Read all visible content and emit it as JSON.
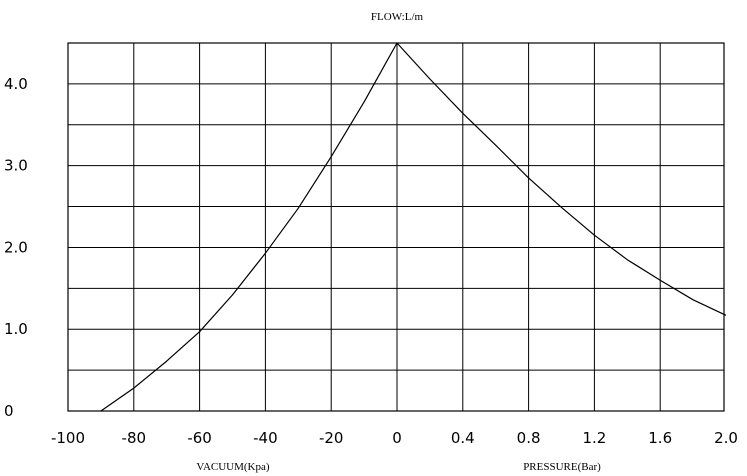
{
  "chart_data": {
    "type": "line",
    "title": "FLOW:L/m",
    "xlabel_left": "VACUUM(Kpa)",
    "xlabel_right": "PRESSURE(Bar)",
    "ylabel": "",
    "x_tick_labels": [
      "-100",
      "-80",
      "-60",
      "-40",
      "-20",
      "0",
      "0.4",
      "0.8",
      "1.2",
      "1.6",
      "2.0"
    ],
    "y_tick_labels": [
      "0",
      "1.0",
      "2.0",
      "3.0",
      "4.0"
    ],
    "y_ticks": [
      0,
      1.0,
      2.0,
      3.0,
      4.0
    ],
    "ylim": [
      0,
      4.5
    ],
    "grid": true,
    "series": [
      {
        "segment": "vacuum",
        "x_unit": "Kpa",
        "x": [
          -90,
          -80,
          -70,
          -60,
          -50,
          -40,
          -30,
          -20,
          -10,
          0
        ],
        "y": [
          0.0,
          0.28,
          0.61,
          0.97,
          1.42,
          1.93,
          2.48,
          3.11,
          3.78,
          4.5
        ]
      },
      {
        "segment": "pressure",
        "x_unit": "Bar",
        "x": [
          0,
          0.2,
          0.4,
          0.6,
          0.8,
          1.0,
          1.2,
          1.4,
          1.6,
          1.8,
          2.0
        ],
        "y": [
          4.5,
          4.06,
          3.64,
          3.25,
          2.85,
          2.49,
          2.15,
          1.85,
          1.6,
          1.36,
          1.17
        ]
      }
    ]
  }
}
